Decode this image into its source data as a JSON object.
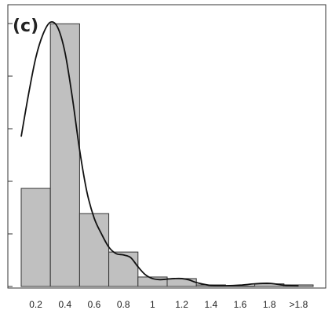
{
  "chart_data": {
    "type": "bar",
    "panel_label": "(c)",
    "title": "",
    "xlabel": "",
    "ylabel": "",
    "categories": [
      "0.2",
      "0.4",
      "0.6",
      "0.8",
      "1",
      "1.2",
      "1.4",
      "1.6",
      "1.8",
      ">1.8"
    ],
    "values": [
      0.373,
      0.999,
      0.277,
      0.131,
      0.036,
      0.03,
      0.006,
      0.002,
      0.01,
      0.006
    ],
    "ylim": [
      0,
      1.0
    ],
    "y_ticks": [
      0,
      0.2,
      0.4,
      0.6,
      0.8,
      1.0
    ],
    "y_tick_labels_shown": false,
    "bar_color": "#c0c0c0",
    "bar_edge_color": "#333333",
    "density_curve": {
      "x": [
        0.1,
        0.15,
        0.2,
        0.25,
        0.3,
        0.35,
        0.4,
        0.45,
        0.5,
        0.55,
        0.6,
        0.65,
        0.7,
        0.75,
        0.8,
        0.85,
        0.9,
        0.95,
        1.0,
        1.05,
        1.1,
        1.15,
        1.2,
        1.25,
        1.3,
        1.4,
        1.5,
        1.6,
        1.7,
        1.8,
        1.9,
        2.0
      ],
      "y": [
        0.57,
        0.73,
        0.87,
        0.96,
        1.005,
        0.985,
        0.89,
        0.72,
        0.52,
        0.36,
        0.26,
        0.2,
        0.15,
        0.125,
        0.12,
        0.11,
        0.075,
        0.045,
        0.03,
        0.026,
        0.028,
        0.03,
        0.03,
        0.025,
        0.015,
        0.004,
        0.003,
        0.005,
        0.01,
        0.012,
        0.005,
        0.002
      ]
    }
  }
}
